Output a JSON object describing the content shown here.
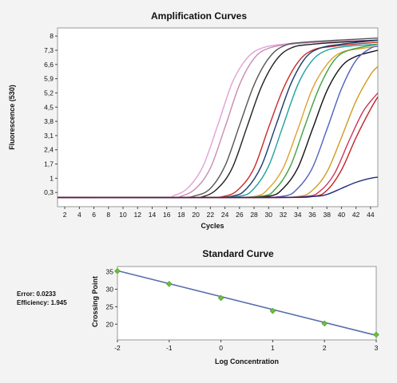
{
  "stats": {
    "error": "Error: 0.0233",
    "efficiency": "Efficiency: 1.945"
  },
  "chart_data": [
    {
      "type": "line",
      "title": "Amplification Curves",
      "xlabel": "Cycles",
      "ylabel": "Fluorescence (530)",
      "xlim": [
        1,
        45
      ],
      "ylim": [
        -0.4,
        8.4
      ],
      "x_ticks": [
        "2",
        "4",
        "6",
        "8",
        "10",
        "12",
        "14",
        "16",
        "18",
        "20",
        "22",
        "24",
        "26",
        "28",
        "30",
        "32",
        "34",
        "36",
        "38",
        "40",
        "42",
        "44"
      ],
      "y_ticks": [
        "0,3",
        "1",
        "1,7",
        "2,4",
        "3,1",
        "3,8",
        "4,5",
        "5,2",
        "5,9",
        "6,6",
        "7,3",
        "8"
      ],
      "grid": false,
      "series": [
        {
          "color": "#e0a0d8",
          "values": [
            [
              1,
              0.05
            ],
            [
              15,
              0.05
            ],
            [
              17,
              0.15
            ],
            [
              19,
              0.55
            ],
            [
              21,
              1.6
            ],
            [
              23,
              3.6
            ],
            [
              25,
              5.7
            ],
            [
              27,
              6.9
            ],
            [
              29,
              7.4
            ],
            [
              32,
              7.6
            ],
            [
              36,
              7.7
            ],
            [
              45,
              7.8
            ]
          ]
        },
        {
          "color": "#c98ab4",
          "values": [
            [
              1,
              0.05
            ],
            [
              16,
              0.05
            ],
            [
              18,
              0.12
            ],
            [
              20,
              0.5
            ],
            [
              22,
              1.5
            ],
            [
              24,
              3.5
            ],
            [
              26,
              5.6
            ],
            [
              28,
              6.9
            ],
            [
              30,
              7.4
            ],
            [
              33,
              7.6
            ],
            [
              37,
              7.7
            ],
            [
              45,
              7.8
            ]
          ]
        },
        {
          "color": "#555555",
          "values": [
            [
              1,
              0.05
            ],
            [
              17,
              0.05
            ],
            [
              20,
              0.15
            ],
            [
              22,
              0.5
            ],
            [
              24,
              1.6
            ],
            [
              26,
              3.6
            ],
            [
              28,
              5.6
            ],
            [
              30,
              6.9
            ],
            [
              32,
              7.5
            ],
            [
              35,
              7.7
            ],
            [
              45,
              7.9
            ]
          ]
        },
        {
          "color": "#222222",
          "values": [
            [
              1,
              0.05
            ],
            [
              18,
              0.05
            ],
            [
              21,
              0.1
            ],
            [
              23,
              0.5
            ],
            [
              25,
              1.5
            ],
            [
              27,
              3.5
            ],
            [
              29,
              5.5
            ],
            [
              31,
              6.8
            ],
            [
              33,
              7.4
            ],
            [
              36,
              7.6
            ],
            [
              45,
              7.8
            ]
          ]
        },
        {
          "color": "#cc2a2a",
          "values": [
            [
              1,
              0.05
            ],
            [
              20,
              0.05
            ],
            [
              24,
              0.12
            ],
            [
              26,
              0.5
            ],
            [
              28,
              1.5
            ],
            [
              30,
              3.5
            ],
            [
              32,
              5.4
            ],
            [
              34,
              6.7
            ],
            [
              36,
              7.3
            ],
            [
              39,
              7.5
            ],
            [
              45,
              7.7
            ]
          ]
        },
        {
          "color": "#1a3a6a",
          "values": [
            [
              1,
              0.05
            ],
            [
              20,
              0.05
            ],
            [
              25,
              0.12
            ],
            [
              27,
              0.5
            ],
            [
              29,
              1.6
            ],
            [
              31,
              3.6
            ],
            [
              33,
              5.6
            ],
            [
              35,
              6.9
            ],
            [
              37,
              7.4
            ],
            [
              40,
              7.6
            ],
            [
              45,
              7.8
            ]
          ]
        },
        {
          "color": "#20a0a0",
          "values": [
            [
              1,
              0.05
            ],
            [
              20,
              0.05
            ],
            [
              26,
              0.12
            ],
            [
              28,
              0.5
            ],
            [
              30,
              1.6
            ],
            [
              32,
              3.6
            ],
            [
              34,
              5.6
            ],
            [
              36,
              6.8
            ],
            [
              38,
              7.3
            ],
            [
              41,
              7.5
            ],
            [
              45,
              7.6
            ]
          ]
        },
        {
          "color": "#e0a030",
          "values": [
            [
              1,
              0.05
            ],
            [
              22,
              0.05
            ],
            [
              28,
              0.1
            ],
            [
              30,
              0.5
            ],
            [
              32,
              1.5
            ],
            [
              34,
              3.4
            ],
            [
              36,
              5.4
            ],
            [
              38,
              6.6
            ],
            [
              40,
              7.2
            ],
            [
              43,
              7.4
            ],
            [
              45,
              7.5
            ]
          ]
        },
        {
          "color": "#40a040",
          "values": [
            [
              1,
              0.05
            ],
            [
              22,
              0.05
            ],
            [
              29,
              0.12
            ],
            [
              31,
              0.5
            ],
            [
              33,
              1.6
            ],
            [
              35,
              3.6
            ],
            [
              37,
              5.5
            ],
            [
              39,
              6.8
            ],
            [
              41,
              7.3
            ],
            [
              45,
              7.6
            ]
          ]
        },
        {
          "color": "#111111",
          "values": [
            [
              1,
              0.05
            ],
            [
              24,
              0.05
            ],
            [
              30,
              0.12
            ],
            [
              32,
              0.5
            ],
            [
              34,
              1.5
            ],
            [
              36,
              3.4
            ],
            [
              38,
              5.3
            ],
            [
              40,
              6.5
            ],
            [
              42,
              7.0
            ],
            [
              45,
              7.3
            ]
          ]
        },
        {
          "color": "#5060c0",
          "values": [
            [
              1,
              0.05
            ],
            [
              26,
              0.05
            ],
            [
              32,
              0.12
            ],
            [
              34,
              0.5
            ],
            [
              36,
              1.5
            ],
            [
              38,
              3.4
            ],
            [
              40,
              5.4
            ],
            [
              42,
              6.8
            ],
            [
              44,
              7.4
            ],
            [
              45,
              7.5
            ]
          ]
        },
        {
          "color": "#d09a20",
          "values": [
            [
              1,
              0.05
            ],
            [
              28,
              0.05
            ],
            [
              34,
              0.1
            ],
            [
              36,
              0.4
            ],
            [
              38,
              1.3
            ],
            [
              40,
              3.0
            ],
            [
              42,
              4.8
            ],
            [
              44,
              6.1
            ],
            [
              45,
              6.5
            ]
          ]
        },
        {
          "color": "#cc3355",
          "values": [
            [
              1,
              0.05
            ],
            [
              28,
              0.05
            ],
            [
              35,
              0.1
            ],
            [
              37,
              0.35
            ],
            [
              39,
              1.2
            ],
            [
              41,
              2.8
            ],
            [
              43,
              4.3
            ],
            [
              45,
              5.2
            ]
          ]
        },
        {
          "color": "#c02020",
          "values": [
            [
              1,
              0.05
            ],
            [
              30,
              0.05
            ],
            [
              36,
              0.1
            ],
            [
              38,
              0.4
            ],
            [
              40,
              1.4
            ],
            [
              42,
              3.0
            ],
            [
              44,
              4.4
            ],
            [
              45,
              5.0
            ]
          ]
        },
        {
          "color": "#202a80",
          "values": [
            [
              1,
              0.05
            ],
            [
              30,
              0.05
            ],
            [
              36,
              0.1
            ],
            [
              38,
              0.2
            ],
            [
              40,
              0.5
            ],
            [
              42,
              0.8
            ],
            [
              44,
              1.0
            ],
            [
              45,
              1.05
            ]
          ]
        }
      ]
    },
    {
      "type": "scatter",
      "title": "Standard Curve",
      "xlabel": "Log Concentration",
      "ylabel": "Crossing Point",
      "xlim": [
        -2,
        3
      ],
      "ylim": [
        15.5,
        36.5
      ],
      "x_ticks": [
        "-2",
        "-1",
        "0",
        "1",
        "2",
        "3"
      ],
      "y_ticks": [
        "20",
        "25",
        "30",
        "35"
      ],
      "grid": false,
      "points": [
        [
          -2,
          35.2
        ],
        [
          -1,
          31.5
        ],
        [
          0,
          27.5
        ],
        [
          1,
          23.8
        ],
        [
          2,
          20.2
        ],
        [
          3,
          17.0
        ]
      ],
      "fit_line": [
        [
          -2,
          35.3
        ],
        [
          3,
          16.8
        ]
      ],
      "point_color": "#6cbf3a",
      "line_color": "#5a6ea8"
    }
  ]
}
